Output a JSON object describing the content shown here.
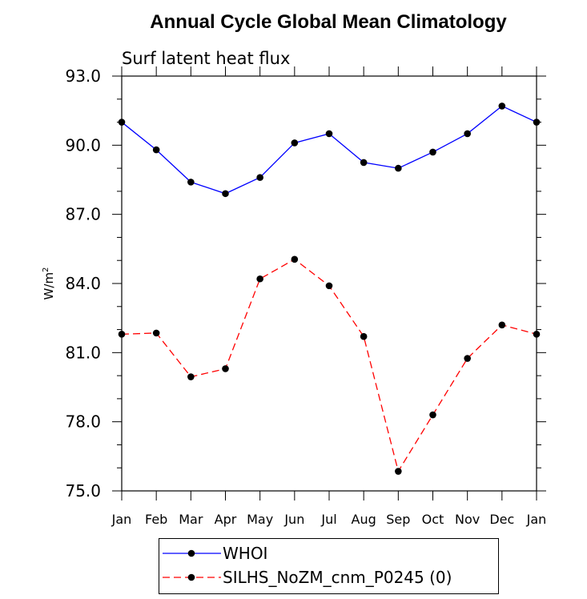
{
  "title": "Annual Cycle Global Mean Climatology",
  "chart_data": {
    "type": "line",
    "title": "Annual Cycle Global Mean Climatology",
    "subtitle": "Surf latent heat flux",
    "xlabel": "",
    "ylabel": "W/m",
    "ylabel_superscript": "2",
    "categories": [
      "Jan",
      "Feb",
      "Mar",
      "Apr",
      "May",
      "Jun",
      "Jul",
      "Aug",
      "Sep",
      "Oct",
      "Nov",
      "Dec",
      "Jan"
    ],
    "ylim": [
      75.0,
      93.0
    ],
    "yticks": [
      75.0,
      78.0,
      81.0,
      84.0,
      87.0,
      90.0,
      93.0
    ],
    "ytick_labels": [
      "75.0",
      "78.0",
      "81.0",
      "84.0",
      "87.0",
      "90.0",
      "93.0"
    ],
    "grid": false,
    "legend_position": "bottom",
    "series": [
      {
        "name": "WHOI",
        "color": "#0000ff",
        "dash": "solid",
        "values": [
          91.0,
          89.8,
          88.4,
          87.9,
          88.6,
          90.1,
          90.5,
          89.25,
          89.0,
          89.7,
          90.5,
          91.7,
          91.0
        ]
      },
      {
        "name": "SILHS_NoZM_cnm_P0245 (0)",
        "color": "#ff0000",
        "dash": "dashed",
        "values": [
          81.8,
          81.85,
          79.95,
          80.3,
          84.2,
          85.05,
          83.9,
          81.7,
          75.85,
          78.3,
          80.75,
          82.2,
          81.8
        ]
      }
    ]
  }
}
